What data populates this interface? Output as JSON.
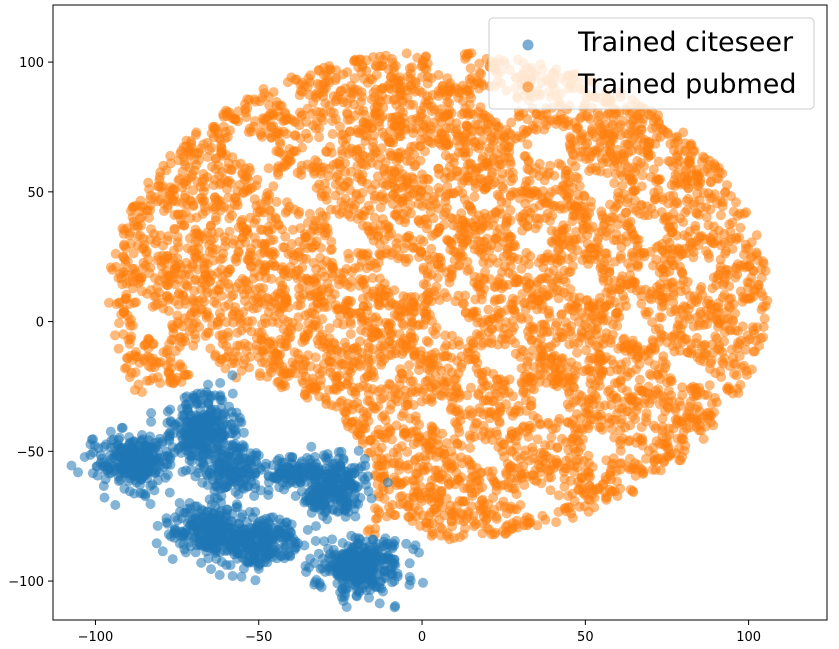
{
  "chart_data": {
    "type": "scatter",
    "title": "",
    "xlabel": "",
    "ylabel": "",
    "xlim": [
      -113,
      124
    ],
    "ylim": [
      -115,
      122
    ],
    "xticks": [
      -100,
      -50,
      0,
      50,
      100
    ],
    "yticks": [
      100,
      50,
      0,
      -50,
      -100
    ],
    "xtick_labels": [
      "−100",
      "−50",
      "0",
      "50",
      "100"
    ],
    "ytick_labels": [
      "100",
      "50",
      "0",
      "−50",
      "−100"
    ],
    "grid": false,
    "legend_position": "top-right",
    "series": [
      {
        "name": "Trained citeseer",
        "color": "#1f77b4",
        "clusters": [
          {
            "cx": -88,
            "cy": -54,
            "sx": 5.5,
            "sy": 5,
            "n": 260
          },
          {
            "cx": -67,
            "cy": -42,
            "sx": 6,
            "sy": 7,
            "n": 300
          },
          {
            "cx": -58,
            "cy": -58,
            "sx": 4,
            "sy": 5,
            "n": 130
          },
          {
            "cx": -66,
            "cy": -80,
            "sx": 6,
            "sy": 5,
            "n": 230
          },
          {
            "cx": -50,
            "cy": -85,
            "sx": 6,
            "sy": 5,
            "n": 260
          },
          {
            "cx": -40,
            "cy": -58,
            "sx": 4,
            "sy": 3,
            "n": 90
          },
          {
            "cx": -27,
            "cy": -63,
            "sx": 5,
            "sy": 6,
            "n": 220
          },
          {
            "cx": -19,
            "cy": -94,
            "sx": 7,
            "sy": 5,
            "n": 330
          },
          {
            "cx": -33,
            "cy": -68,
            "sx": 2,
            "sy": 2,
            "n": 30
          }
        ]
      },
      {
        "name": "Trained pubmed",
        "color": "#ff7f0e",
        "region": {
          "cx": 5,
          "cy": 10,
          "rx": 101,
          "ry": 94
        },
        "exclude": [
          {
            "cx": -62,
            "cy": -65,
            "rx": 48,
            "ry": 43
          },
          {
            "cx": -22,
            "cy": -100,
            "rx": 20,
            "ry": 18
          }
        ],
        "n": 5200
      }
    ]
  }
}
